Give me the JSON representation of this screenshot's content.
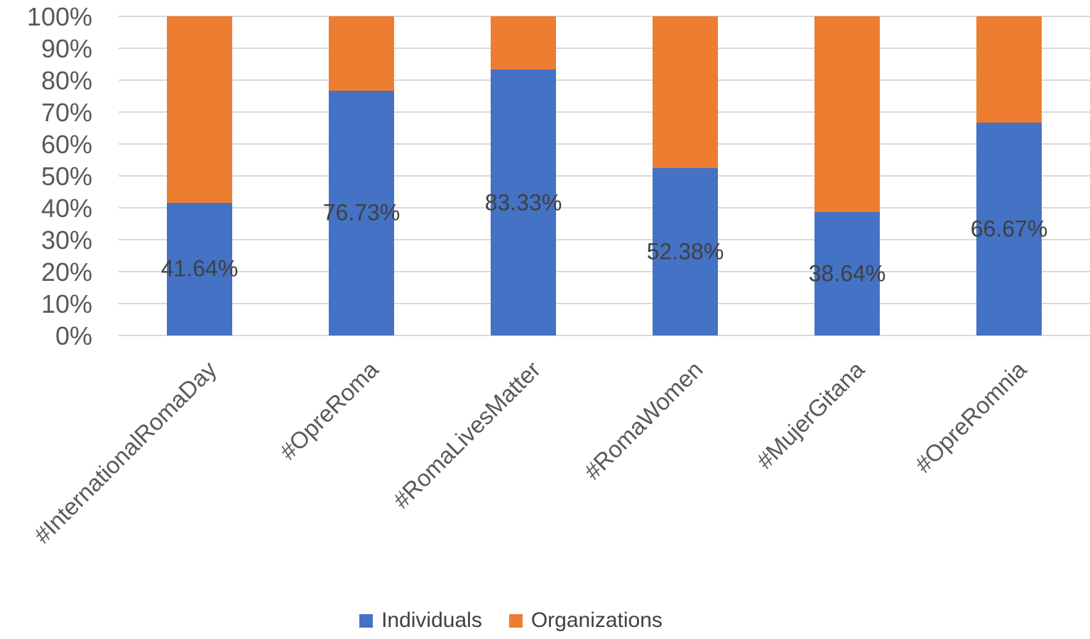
{
  "chart_data": {
    "type": "bar",
    "subtype": "stacked-100-percent-column",
    "title": "",
    "categories": [
      "#InternationalRomaDay",
      "#OpreRoma",
      "#RomaLivesMatter",
      "#RomaWomen",
      "#MujerGitana",
      "#OpreRomnia"
    ],
    "series": [
      {
        "name": "Individuals",
        "color": "#4472C4",
        "values": [
          41.64,
          76.73,
          83.33,
          52.38,
          38.64,
          66.67
        ]
      },
      {
        "name": "Organizations",
        "color": "#ED7D31",
        "values": [
          58.36,
          23.27,
          16.67,
          47.62,
          61.36,
          33.33
        ]
      }
    ],
    "data_labels": {
      "labeled_series": "Individuals",
      "values": [
        "41.64%",
        "76.73%",
        "83.33%",
        "52.38%",
        "38.64%",
        "66.67%"
      ]
    },
    "y_axis": {
      "ticks": [
        "100%",
        "90%",
        "80%",
        "70%",
        "60%",
        "50%",
        "40%",
        "30%",
        "20%",
        "10%",
        "0%"
      ],
      "min": 0,
      "max": 100,
      "unit": "%"
    },
    "x_axis": {
      "label_rotation_deg": 45
    },
    "grid": true,
    "legend": {
      "position": "bottom",
      "entries": [
        "Individuals",
        "Organizations"
      ]
    },
    "colors": {
      "grid": "#D9D9D9",
      "axis_text": "#595959",
      "data_label_text": "#404040",
      "legend_text": "#404040",
      "background": "#FFFFFF"
    }
  }
}
